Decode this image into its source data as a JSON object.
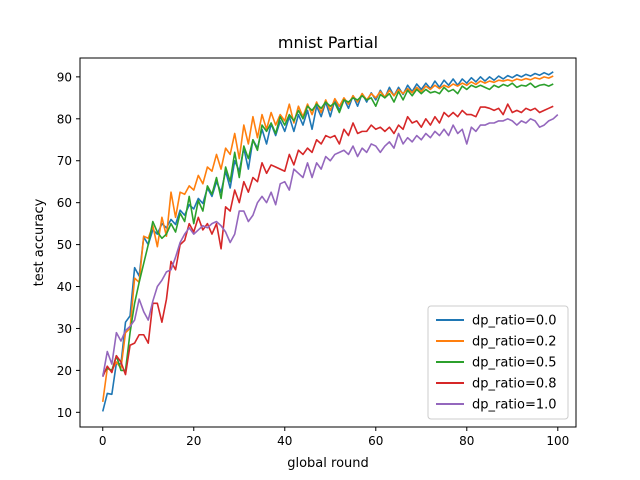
{
  "chart_data": {
    "type": "line",
    "title": "mnist Partial",
    "xlabel": "global round",
    "ylabel": "test accuracy",
    "xlim": [
      -5,
      104
    ],
    "ylim": [
      6.5,
      94.5
    ],
    "xticks": [
      0,
      20,
      40,
      60,
      80,
      100
    ],
    "yticks": [
      10,
      20,
      30,
      40,
      50,
      60,
      70,
      80,
      90
    ],
    "grid": false,
    "legend_position": "lower right",
    "series": [
      {
        "name": "dp_ratio=0.0",
        "color": "#1f77b4",
        "values": [
          10.2,
          14.5,
          14.3,
          21.8,
          21.5,
          31.5,
          33.0,
          44.5,
          42.5,
          51.8,
          50.0,
          53.5,
          52.5,
          55.0,
          54.0,
          56.0,
          54.8,
          58.2,
          57.0,
          59.5,
          58.5,
          61.0,
          59.8,
          63.5,
          61.5,
          65.0,
          62.5,
          67.5,
          63.5,
          70.0,
          67.5,
          73.0,
          68.0,
          75.0,
          73.0,
          77.5,
          74.0,
          78.8,
          76.0,
          79.5,
          77.0,
          80.5,
          77.0,
          81.0,
          78.5,
          82.0,
          77.5,
          83.0,
          80.5,
          84.0,
          80.5,
          84.5,
          82.0,
          84.8,
          82.5,
          85.5,
          83.0,
          86.0,
          84.0,
          86.2,
          84.5,
          86.8,
          85.0,
          87.5,
          85.5,
          87.5,
          85.8,
          88.0,
          86.5,
          88.3,
          87.0,
          88.5,
          87.2,
          89.0,
          87.5,
          89.2,
          88.0,
          89.5,
          88.0,
          89.5,
          88.5,
          89.8,
          88.8,
          90.0,
          89.0,
          90.0,
          89.2,
          90.2,
          89.5,
          90.3,
          89.8,
          90.5,
          90.0,
          90.6,
          90.2,
          90.8,
          90.4,
          91.0,
          90.5,
          91.2
        ]
      },
      {
        "name": "dp_ratio=0.2",
        "color": "#ff7f0e",
        "values": [
          12.5,
          20.5,
          20.0,
          22.0,
          20.5,
          29.0,
          30.0,
          42.0,
          41.0,
          52.0,
          51.5,
          54.5,
          49.5,
          56.5,
          52.0,
          62.5,
          56.5,
          62.5,
          62.0,
          64.0,
          63.0,
          66.5,
          64.5,
          68.5,
          67.5,
          71.5,
          68.0,
          73.0,
          71.5,
          76.5,
          70.5,
          78.5,
          74.0,
          80.5,
          75.5,
          81.0,
          77.5,
          81.5,
          78.5,
          81.0,
          79.5,
          83.5,
          79.0,
          83.0,
          80.5,
          83.5,
          81.0,
          84.0,
          81.5,
          84.5,
          82.0,
          84.8,
          83.0,
          85.0,
          83.5,
          85.5,
          84.0,
          86.0,
          84.5,
          86.0,
          85.0,
          86.5,
          85.2,
          86.8,
          85.5,
          87.0,
          86.0,
          87.2,
          86.2,
          87.5,
          86.5,
          87.8,
          87.0,
          88.0,
          87.2,
          88.0,
          87.5,
          88.3,
          87.8,
          88.5,
          88.0,
          88.8,
          88.2,
          89.0,
          88.5,
          89.0,
          88.7,
          89.2,
          89.0,
          89.3,
          89.0,
          89.5,
          89.2,
          89.6,
          89.3,
          89.8,
          89.5,
          90.0,
          89.7,
          90.2
        ]
      },
      {
        "name": "dp_ratio=0.5",
        "color": "#2ca02c",
        "values": [
          19.0,
          20.5,
          20.0,
          23.5,
          20.0,
          20.0,
          29.0,
          36.0,
          41.0,
          45.5,
          50.0,
          55.5,
          53.0,
          51.5,
          52.5,
          55.0,
          53.0,
          57.5,
          55.5,
          61.5,
          55.0,
          60.5,
          58.0,
          64.0,
          62.0,
          66.0,
          61.0,
          68.5,
          65.0,
          72.0,
          66.0,
          73.5,
          70.5,
          75.0,
          72.5,
          78.5,
          77.0,
          79.0,
          76.5,
          80.5,
          78.5,
          81.0,
          79.5,
          82.0,
          80.0,
          83.0,
          82.0,
          83.5,
          82.5,
          84.0,
          83.0,
          83.8,
          81.5,
          84.5,
          84.0,
          85.0,
          84.5,
          85.5,
          84.5,
          85.0,
          83.0,
          85.8,
          85.0,
          86.0,
          84.0,
          86.5,
          84.5,
          86.8,
          85.5,
          87.0,
          86.0,
          87.0,
          86.2,
          86.5,
          86.0,
          87.5,
          86.5,
          87.0,
          86.0,
          87.8,
          87.0,
          88.0,
          87.5,
          88.0,
          87.5,
          87.0,
          88.0,
          87.5,
          88.2,
          87.8,
          88.5,
          87.5,
          88.0,
          87.8,
          88.5,
          87.5,
          88.0,
          88.2,
          87.8,
          88.3
        ]
      },
      {
        "name": "dp_ratio=0.8",
        "color": "#d62728",
        "values": [
          18.5,
          21.0,
          19.5,
          23.5,
          22.0,
          19.0,
          26.0,
          26.5,
          28.5,
          28.5,
          26.5,
          36.0,
          36.0,
          31.5,
          37.0,
          46.0,
          44.0,
          50.0,
          51.0,
          55.0,
          53.0,
          56.5,
          53.5,
          55.0,
          52.5,
          55.0,
          49.0,
          59.0,
          58.0,
          63.0,
          60.0,
          65.0,
          62.5,
          66.0,
          65.0,
          69.5,
          67.0,
          69.0,
          68.5,
          68.0,
          67.5,
          71.5,
          69.0,
          72.5,
          71.5,
          73.0,
          72.0,
          75.0,
          74.0,
          76.0,
          75.5,
          76.0,
          74.0,
          77.5,
          76.0,
          79.0,
          76.5,
          77.0,
          77.0,
          78.5,
          77.5,
          78.0,
          77.0,
          78.0,
          76.5,
          78.5,
          77.5,
          80.5,
          79.0,
          79.5,
          78.0,
          80.0,
          78.5,
          80.5,
          79.0,
          81.5,
          80.5,
          81.5,
          80.5,
          82.0,
          81.0,
          81.0,
          80.5,
          82.8,
          82.8,
          82.5,
          82.0,
          82.5,
          81.0,
          83.5,
          81.5,
          82.0,
          81.5,
          82.5,
          82.0,
          82.5,
          81.5,
          82.0,
          82.5,
          83.0
        ]
      },
      {
        "name": "dp_ratio=1.0",
        "color": "#9467bd",
        "values": [
          18.5,
          24.5,
          21.5,
          29.0,
          27.0,
          29.5,
          30.5,
          32.0,
          37.0,
          34.0,
          32.0,
          36.5,
          40.0,
          41.5,
          43.5,
          44.0,
          47.0,
          50.5,
          52.5,
          54.0,
          52.5,
          53.5,
          54.5,
          54.0,
          55.0,
          55.5,
          54.5,
          53.0,
          50.5,
          52.5,
          58.0,
          58.0,
          55.5,
          57.0,
          60.0,
          61.5,
          60.0,
          62.5,
          59.5,
          64.5,
          65.0,
          63.0,
          68.0,
          67.0,
          66.0,
          69.5,
          66.0,
          69.5,
          68.0,
          71.0,
          70.0,
          71.5,
          72.0,
          72.5,
          71.5,
          73.5,
          71.0,
          73.0,
          72.0,
          74.0,
          73.5,
          72.0,
          73.5,
          74.5,
          73.0,
          76.5,
          74.0,
          75.5,
          74.5,
          76.0,
          75.0,
          76.5,
          75.5,
          77.0,
          76.0,
          77.5,
          76.0,
          78.5,
          76.5,
          77.5,
          74.0,
          78.0,
          77.0,
          78.5,
          78.5,
          79.0,
          79.0,
          79.5,
          79.5,
          80.0,
          79.5,
          78.5,
          79.5,
          79.0,
          80.0,
          79.5,
          78.0,
          78.5,
          79.5,
          80.0,
          81.0
        ]
      }
    ]
  }
}
